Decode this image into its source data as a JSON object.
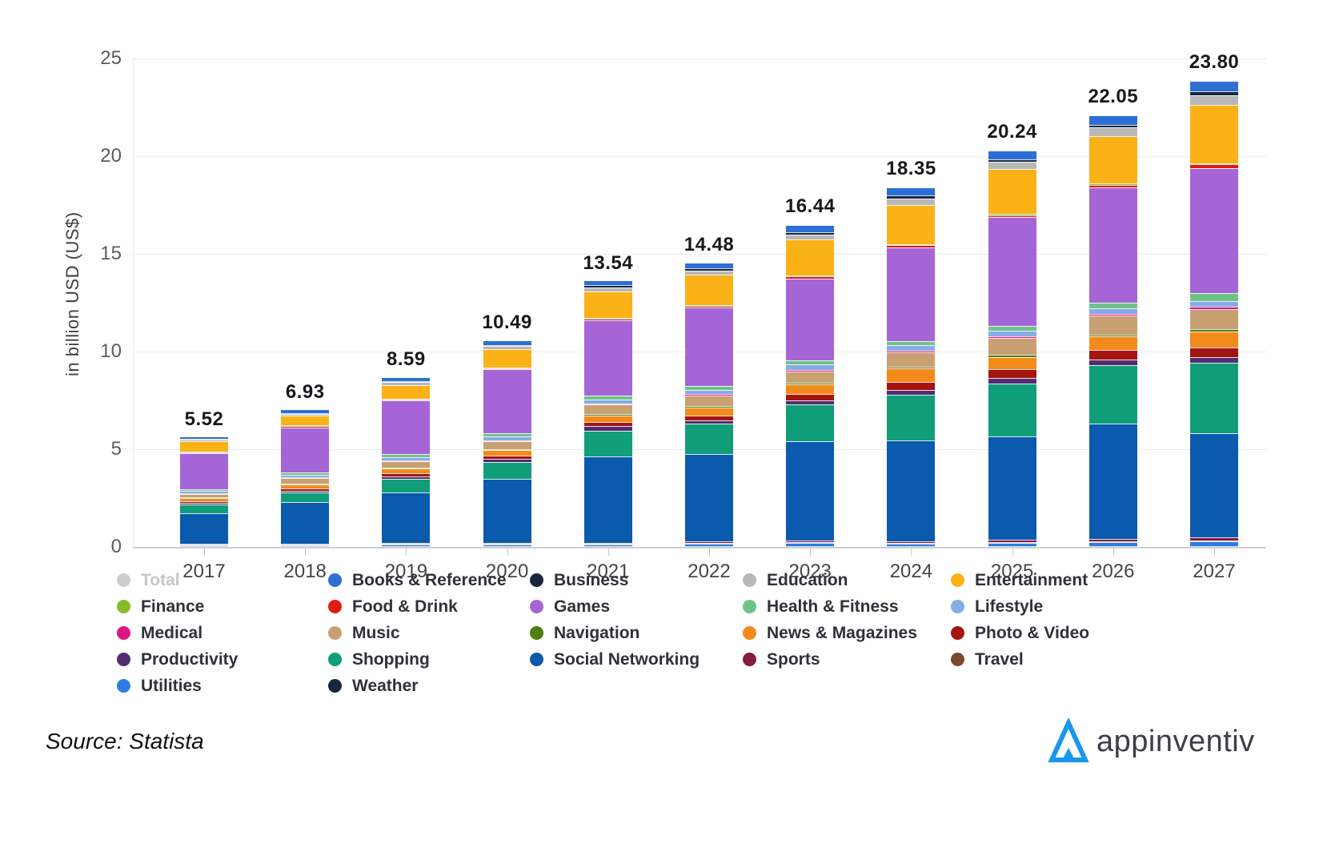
{
  "chart_data": {
    "type": "bar",
    "stacked": true,
    "title": "",
    "ylabel": "in billion USD (US$)",
    "ylim": [
      0,
      25
    ],
    "yticks": [
      0,
      5,
      10,
      15,
      20,
      25
    ],
    "grid": true,
    "legend_position": "bottom",
    "stack_order": "series listed top-to-bottom within each bar; bottom-to-top is the reverse",
    "x": [
      "2017",
      "2018",
      "2019",
      "2020",
      "2021",
      "2022",
      "2023",
      "2024",
      "2025",
      "2026",
      "2027"
    ],
    "totals": [
      5.52,
      6.93,
      8.59,
      10.49,
      13.54,
      14.48,
      16.44,
      18.35,
      20.24,
      22.05,
      23.8
    ],
    "series": [
      {
        "name": "Books & Reference",
        "color": "#2d6fd4",
        "values": [
          0.1,
          0.15,
          0.17,
          0.18,
          0.2,
          0.22,
          0.36,
          0.4,
          0.42,
          0.45,
          0.49
        ]
      },
      {
        "name": "Business",
        "color": "#17263f",
        "values": [
          0.04,
          0.04,
          0.05,
          0.06,
          0.12,
          0.12,
          0.12,
          0.16,
          0.14,
          0.16,
          0.2
        ]
      },
      {
        "name": "Education",
        "color": "#b8b8b8",
        "values": [
          0.1,
          0.1,
          0.13,
          0.15,
          0.2,
          0.22,
          0.24,
          0.32,
          0.36,
          0.42,
          0.49
        ]
      },
      {
        "name": "Entertainment",
        "color": "#fbb216",
        "values": [
          0.5,
          0.5,
          0.7,
          0.95,
          1.35,
          1.55,
          1.85,
          2.0,
          2.3,
          2.45,
          3.0
        ]
      },
      {
        "name": "Finance",
        "color": "#85bb2f",
        "values": [
          0.02,
          0.03,
          0.03,
          0.04,
          0.04,
          0.04,
          0.05,
          0.06,
          0.05,
          0.05,
          0.05
        ]
      },
      {
        "name": "Food & Drink",
        "color": "#dd1d0e",
        "values": [
          0.04,
          0.05,
          0.06,
          0.07,
          0.08,
          0.1,
          0.12,
          0.1,
          0.11,
          0.13,
          0.18
        ]
      },
      {
        "name": "Games",
        "color": "#a565d6",
        "values": [
          1.85,
          2.3,
          2.75,
          3.25,
          3.85,
          4.0,
          4.15,
          4.8,
          5.55,
          5.9,
          6.4
        ]
      },
      {
        "name": "Health & Fitness",
        "color": "#6ec388",
        "values": [
          0.08,
          0.12,
          0.14,
          0.16,
          0.2,
          0.2,
          0.22,
          0.2,
          0.25,
          0.28,
          0.4
        ]
      },
      {
        "name": "Lifestyle",
        "color": "#85ade6",
        "values": [
          0.12,
          0.15,
          0.18,
          0.22,
          0.2,
          0.24,
          0.28,
          0.28,
          0.3,
          0.31,
          0.32
        ]
      },
      {
        "name": "Medical",
        "color": "#e01383",
        "values": [
          0.03,
          0.04,
          0.05,
          0.06,
          0.06,
          0.08,
          0.1,
          0.08,
          0.09,
          0.09,
          0.1
        ]
      },
      {
        "name": "Music",
        "color": "#c9a072",
        "values": [
          0.2,
          0.26,
          0.32,
          0.38,
          0.49,
          0.52,
          0.55,
          0.75,
          0.85,
          0.95,
          1.05
        ]
      },
      {
        "name": "Navigation",
        "color": "#4f7d10",
        "values": [
          0.04,
          0.05,
          0.06,
          0.07,
          0.08,
          0.08,
          0.1,
          0.1,
          0.11,
          0.11,
          0.1
        ]
      },
      {
        "name": "News & Magazines",
        "color": "#f28b1c",
        "values": [
          0.15,
          0.2,
          0.24,
          0.26,
          0.32,
          0.4,
          0.5,
          0.69,
          0.65,
          0.7,
          0.81
        ]
      },
      {
        "name": "Photo & Video",
        "color": "#a51410",
        "values": [
          0.08,
          0.12,
          0.15,
          0.17,
          0.2,
          0.25,
          0.32,
          0.4,
          0.44,
          0.47,
          0.49
        ]
      },
      {
        "name": "Productivity",
        "color": "#532c72",
        "values": [
          0.08,
          0.1,
          0.13,
          0.16,
          0.24,
          0.18,
          0.22,
          0.24,
          0.28,
          0.3,
          0.32
        ]
      },
      {
        "name": "Shopping",
        "color": "#0f9e78",
        "values": [
          0.45,
          0.5,
          0.7,
          0.85,
          1.34,
          1.55,
          1.85,
          2.35,
          2.7,
          3.0,
          3.6
        ]
      },
      {
        "name": "Social Networking",
        "color": "#0a5aad",
        "values": [
          1.55,
          2.1,
          2.58,
          3.28,
          4.4,
          4.48,
          5.09,
          5.15,
          5.3,
          5.9,
          5.3
        ]
      },
      {
        "name": "Sports",
        "color": "#851b41",
        "values": [
          0.02,
          0.02,
          0.03,
          0.04,
          0.03,
          0.05,
          0.08,
          0.08,
          0.1,
          0.12,
          0.2
        ]
      },
      {
        "name": "Travel",
        "color": "#7a482a",
        "values": [
          0.01,
          0.02,
          0.02,
          0.02,
          0.02,
          0.03,
          0.03,
          0.03,
          0.03,
          0.03,
          0.04
        ]
      },
      {
        "name": "Utilities",
        "color": "#2e7ce0",
        "values": [
          0.05,
          0.06,
          0.08,
          0.1,
          0.1,
          0.14,
          0.18,
          0.14,
          0.18,
          0.2,
          0.23
        ]
      },
      {
        "name": "Weather",
        "color": "#152840",
        "values": [
          0.01,
          0.02,
          0.02,
          0.02,
          0.02,
          0.03,
          0.03,
          0.02,
          0.03,
          0.03,
          0.03
        ]
      }
    ]
  },
  "legend": {
    "items": [
      {
        "label": "Total",
        "color": "#cdcdcd",
        "muted": true
      },
      {
        "label": "Books & Reference",
        "color": "#2d6fd4"
      },
      {
        "label": "Business",
        "color": "#17263f"
      },
      {
        "label": "Education",
        "color": "#b8b8b8"
      },
      {
        "label": "Entertainment",
        "color": "#fbb216"
      },
      {
        "label": "Finance",
        "color": "#85bb2f"
      },
      {
        "label": "Food & Drink",
        "color": "#dd1d0e"
      },
      {
        "label": "Games",
        "color": "#a565d6"
      },
      {
        "label": "Health & Fitness",
        "color": "#6ec388"
      },
      {
        "label": "Lifestyle",
        "color": "#85ade6"
      },
      {
        "label": "Medical",
        "color": "#e01383"
      },
      {
        "label": "Music",
        "color": "#c9a072"
      },
      {
        "label": "Navigation",
        "color": "#4f7d10"
      },
      {
        "label": "News & Magazines",
        "color": "#f28b1c"
      },
      {
        "label": "Photo & Video",
        "color": "#a51410"
      },
      {
        "label": "Productivity",
        "color": "#532c72"
      },
      {
        "label": "Shopping",
        "color": "#0f9e78"
      },
      {
        "label": "Social Networking",
        "color": "#0a5aad"
      },
      {
        "label": "Sports",
        "color": "#851b41"
      },
      {
        "label": "Travel",
        "color": "#7a482a"
      },
      {
        "label": "Utilities",
        "color": "#2e7ce0"
      },
      {
        "label": "Weather",
        "color": "#152840"
      }
    ]
  },
  "footer": {
    "source_label": "Source: Statista",
    "brand_name": "appinventiv",
    "brand_color": "#1798ee"
  }
}
